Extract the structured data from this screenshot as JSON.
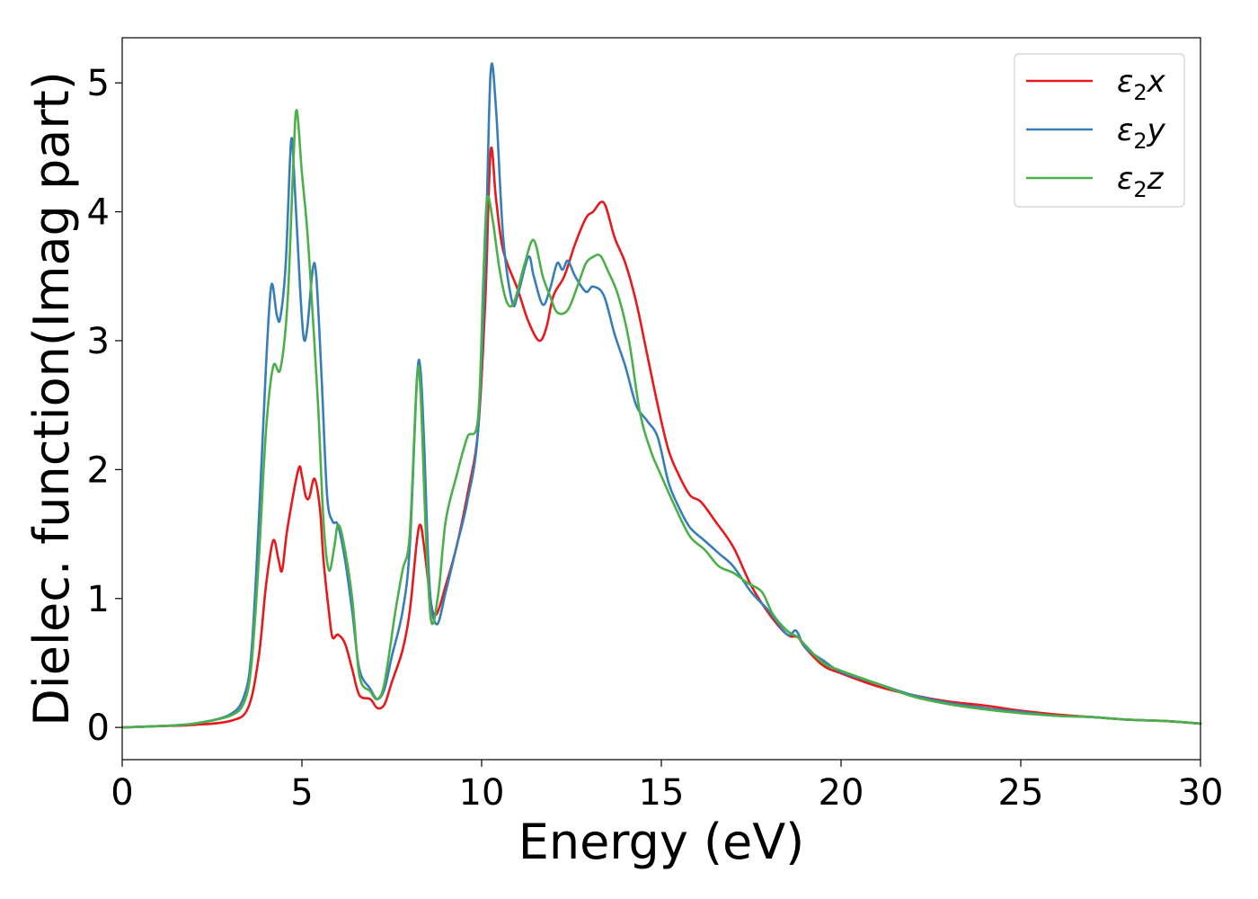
{
  "chart_data": {
    "type": "line",
    "xlabel": "Energy (eV)",
    "ylabel": "Dielec. function(Imag part)",
    "xlim": [
      0,
      30
    ],
    "ylim": [
      -0.25,
      5.35
    ],
    "x_ticks": [
      0,
      5,
      10,
      15,
      20,
      25,
      30
    ],
    "y_ticks": [
      0,
      1,
      2,
      3,
      4,
      5
    ],
    "grid": false,
    "legend_position": "top-right",
    "series": [
      {
        "name": "ε₂x",
        "legend_base": "ε",
        "legend_sub": "2",
        "legend_var": "x",
        "color": "#e41a1c",
        "points": [
          [
            0,
            0
          ],
          [
            1,
            0.01
          ],
          [
            2,
            0.02
          ],
          [
            3,
            0.05
          ],
          [
            3.5,
            0.15
          ],
          [
            3.8,
            0.55
          ],
          [
            4.0,
            1.1
          ],
          [
            4.2,
            1.45
          ],
          [
            4.35,
            1.3
          ],
          [
            4.45,
            1.22
          ],
          [
            4.6,
            1.55
          ],
          [
            4.9,
            2.0
          ],
          [
            5.0,
            1.95
          ],
          [
            5.1,
            1.8
          ],
          [
            5.2,
            1.78
          ],
          [
            5.35,
            1.93
          ],
          [
            5.5,
            1.7
          ],
          [
            5.6,
            1.3
          ],
          [
            5.75,
            0.9
          ],
          [
            5.85,
            0.7
          ],
          [
            6.0,
            0.72
          ],
          [
            6.2,
            0.65
          ],
          [
            6.4,
            0.45
          ],
          [
            6.6,
            0.25
          ],
          [
            6.9,
            0.22
          ],
          [
            7.1,
            0.15
          ],
          [
            7.3,
            0.18
          ],
          [
            7.5,
            0.35
          ],
          [
            7.8,
            0.6
          ],
          [
            8.0,
            0.9
          ],
          [
            8.2,
            1.45
          ],
          [
            8.3,
            1.57
          ],
          [
            8.4,
            1.4
          ],
          [
            8.6,
            0.95
          ],
          [
            8.75,
            0.88
          ],
          [
            9.0,
            1.1
          ],
          [
            9.3,
            1.4
          ],
          [
            9.6,
            1.8
          ],
          [
            9.9,
            2.3
          ],
          [
            10.1,
            3.3
          ],
          [
            10.25,
            4.47
          ],
          [
            10.4,
            4.1
          ],
          [
            10.6,
            3.7
          ],
          [
            11.0,
            3.4
          ],
          [
            11.3,
            3.15
          ],
          [
            11.6,
            3.0
          ],
          [
            11.8,
            3.1
          ],
          [
            12.0,
            3.35
          ],
          [
            12.3,
            3.5
          ],
          [
            12.6,
            3.75
          ],
          [
            12.9,
            3.95
          ],
          [
            13.1,
            4.0
          ],
          [
            13.4,
            4.07
          ],
          [
            13.7,
            3.8
          ],
          [
            14.0,
            3.6
          ],
          [
            14.3,
            3.3
          ],
          [
            14.6,
            2.9
          ],
          [
            14.9,
            2.5
          ],
          [
            15.2,
            2.15
          ],
          [
            15.5,
            1.95
          ],
          [
            15.8,
            1.8
          ],
          [
            16.1,
            1.75
          ],
          [
            16.5,
            1.6
          ],
          [
            17.0,
            1.4
          ],
          [
            17.5,
            1.1
          ],
          [
            18.0,
            0.88
          ],
          [
            18.5,
            0.72
          ],
          [
            18.8,
            0.7
          ],
          [
            19.0,
            0.62
          ],
          [
            19.5,
            0.48
          ],
          [
            20.0,
            0.42
          ],
          [
            21.0,
            0.32
          ],
          [
            22.0,
            0.25
          ],
          [
            23.0,
            0.2
          ],
          [
            24.0,
            0.17
          ],
          [
            25.0,
            0.13
          ],
          [
            26.0,
            0.1
          ],
          [
            27.0,
            0.08
          ],
          [
            28.0,
            0.06
          ],
          [
            29.0,
            0.05
          ],
          [
            30.0,
            0.03
          ]
        ]
      },
      {
        "name": "ε₂y",
        "legend_base": "ε",
        "legend_sub": "2",
        "legend_var": "y",
        "color": "#377eb8",
        "points": [
          [
            0,
            0
          ],
          [
            1,
            0.01
          ],
          [
            2,
            0.03
          ],
          [
            3,
            0.1
          ],
          [
            3.4,
            0.25
          ],
          [
            3.6,
            0.6
          ],
          [
            3.8,
            1.6
          ],
          [
            4.0,
            2.8
          ],
          [
            4.15,
            3.43
          ],
          [
            4.3,
            3.2
          ],
          [
            4.4,
            3.18
          ],
          [
            4.55,
            3.6
          ],
          [
            4.7,
            4.55
          ],
          [
            4.8,
            4.2
          ],
          [
            4.95,
            3.4
          ],
          [
            5.05,
            3.02
          ],
          [
            5.15,
            3.1
          ],
          [
            5.3,
            3.55
          ],
          [
            5.4,
            3.5
          ],
          [
            5.55,
            2.7
          ],
          [
            5.7,
            1.8
          ],
          [
            5.85,
            1.6
          ],
          [
            6.0,
            1.57
          ],
          [
            6.2,
            1.3
          ],
          [
            6.4,
            0.9
          ],
          [
            6.6,
            0.45
          ],
          [
            6.9,
            0.3
          ],
          [
            7.1,
            0.22
          ],
          [
            7.3,
            0.3
          ],
          [
            7.5,
            0.55
          ],
          [
            7.8,
            0.9
          ],
          [
            8.0,
            1.4
          ],
          [
            8.2,
            2.7
          ],
          [
            8.3,
            2.77
          ],
          [
            8.4,
            2.2
          ],
          [
            8.55,
            1.1
          ],
          [
            8.75,
            0.8
          ],
          [
            9.0,
            1.05
          ],
          [
            9.3,
            1.4
          ],
          [
            9.6,
            1.75
          ],
          [
            9.9,
            2.3
          ],
          [
            10.1,
            3.6
          ],
          [
            10.25,
            5.08
          ],
          [
            10.4,
            4.8
          ],
          [
            10.6,
            3.8
          ],
          [
            10.85,
            3.3
          ],
          [
            11.0,
            3.35
          ],
          [
            11.3,
            3.65
          ],
          [
            11.45,
            3.5
          ],
          [
            11.7,
            3.28
          ],
          [
            11.9,
            3.4
          ],
          [
            12.1,
            3.6
          ],
          [
            12.25,
            3.55
          ],
          [
            12.4,
            3.62
          ],
          [
            12.6,
            3.5
          ],
          [
            12.9,
            3.38
          ],
          [
            13.1,
            3.42
          ],
          [
            13.4,
            3.35
          ],
          [
            13.7,
            3.05
          ],
          [
            14.0,
            2.8
          ],
          [
            14.3,
            2.5
          ],
          [
            14.6,
            2.38
          ],
          [
            14.9,
            2.25
          ],
          [
            15.2,
            1.9
          ],
          [
            15.5,
            1.7
          ],
          [
            15.8,
            1.55
          ],
          [
            16.2,
            1.45
          ],
          [
            16.6,
            1.35
          ],
          [
            17.0,
            1.25
          ],
          [
            17.5,
            1.05
          ],
          [
            18.0,
            0.9
          ],
          [
            18.5,
            0.72
          ],
          [
            18.75,
            0.75
          ],
          [
            19.0,
            0.62
          ],
          [
            19.5,
            0.52
          ],
          [
            20.0,
            0.43
          ],
          [
            21.0,
            0.34
          ],
          [
            22.0,
            0.25
          ],
          [
            23.0,
            0.19
          ],
          [
            24.0,
            0.15
          ],
          [
            25.0,
            0.12
          ],
          [
            26.0,
            0.09
          ],
          [
            27.0,
            0.08
          ],
          [
            28.0,
            0.06
          ],
          [
            29.0,
            0.05
          ],
          [
            30.0,
            0.03
          ]
        ]
      },
      {
        "name": "ε₂z",
        "legend_base": "ε",
        "legend_sub": "2",
        "legend_var": "z",
        "color": "#4daf4a",
        "points": [
          [
            0,
            0
          ],
          [
            1,
            0.01
          ],
          [
            2,
            0.03
          ],
          [
            3,
            0.09
          ],
          [
            3.4,
            0.2
          ],
          [
            3.6,
            0.5
          ],
          [
            3.8,
            1.3
          ],
          [
            4.0,
            2.3
          ],
          [
            4.2,
            2.8
          ],
          [
            4.4,
            2.78
          ],
          [
            4.6,
            3.3
          ],
          [
            4.75,
            4.3
          ],
          [
            4.85,
            4.79
          ],
          [
            5.0,
            4.3
          ],
          [
            5.15,
            3.85
          ],
          [
            5.3,
            3.2
          ],
          [
            5.45,
            2.5
          ],
          [
            5.6,
            1.6
          ],
          [
            5.75,
            1.22
          ],
          [
            5.9,
            1.4
          ],
          [
            6.0,
            1.57
          ],
          [
            6.15,
            1.45
          ],
          [
            6.4,
            1.0
          ],
          [
            6.6,
            0.4
          ],
          [
            6.9,
            0.28
          ],
          [
            7.1,
            0.22
          ],
          [
            7.3,
            0.35
          ],
          [
            7.6,
            0.9
          ],
          [
            7.8,
            1.22
          ],
          [
            8.0,
            1.5
          ],
          [
            8.2,
            2.7
          ],
          [
            8.3,
            2.6
          ],
          [
            8.45,
            1.5
          ],
          [
            8.6,
            0.82
          ],
          [
            8.8,
            1.05
          ],
          [
            9.0,
            1.6
          ],
          [
            9.3,
            1.95
          ],
          [
            9.6,
            2.25
          ],
          [
            9.9,
            2.4
          ],
          [
            10.05,
            3.5
          ],
          [
            10.15,
            4.1
          ],
          [
            10.3,
            3.95
          ],
          [
            10.5,
            3.55
          ],
          [
            10.7,
            3.3
          ],
          [
            10.9,
            3.3
          ],
          [
            11.2,
            3.6
          ],
          [
            11.45,
            3.78
          ],
          [
            11.7,
            3.5
          ],
          [
            11.9,
            3.35
          ],
          [
            12.1,
            3.22
          ],
          [
            12.4,
            3.24
          ],
          [
            12.7,
            3.45
          ],
          [
            12.9,
            3.6
          ],
          [
            13.1,
            3.65
          ],
          [
            13.3,
            3.66
          ],
          [
            13.5,
            3.55
          ],
          [
            13.8,
            3.35
          ],
          [
            14.1,
            3.0
          ],
          [
            14.4,
            2.45
          ],
          [
            14.7,
            2.15
          ],
          [
            15.0,
            1.95
          ],
          [
            15.4,
            1.7
          ],
          [
            15.8,
            1.48
          ],
          [
            16.2,
            1.38
          ],
          [
            16.6,
            1.25
          ],
          [
            17.0,
            1.2
          ],
          [
            17.4,
            1.12
          ],
          [
            17.8,
            1.05
          ],
          [
            18.1,
            0.88
          ],
          [
            18.5,
            0.75
          ],
          [
            18.8,
            0.7
          ],
          [
            19.0,
            0.64
          ],
          [
            19.5,
            0.5
          ],
          [
            20.0,
            0.44
          ],
          [
            21.0,
            0.34
          ],
          [
            22.0,
            0.24
          ],
          [
            23.0,
            0.18
          ],
          [
            24.0,
            0.14
          ],
          [
            25.0,
            0.11
          ],
          [
            26.0,
            0.09
          ],
          [
            27.0,
            0.08
          ],
          [
            28.0,
            0.06
          ],
          [
            29.0,
            0.05
          ],
          [
            30.0,
            0.03
          ]
        ]
      }
    ]
  }
}
